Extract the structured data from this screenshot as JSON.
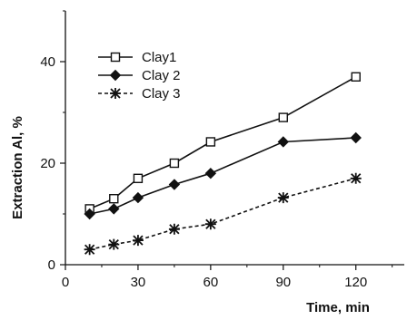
{
  "chart_data": {
    "type": "line",
    "title": "",
    "xlabel": "Time, min",
    "ylabel": "Extraction Al, %",
    "xlim": [
      0,
      140
    ],
    "ylim": [
      0,
      50
    ],
    "xticks": [
      0,
      30,
      60,
      90,
      120
    ],
    "yticks": [
      0,
      20,
      40
    ],
    "grid": false,
    "legend_position": "top-left",
    "x": [
      10,
      20,
      30,
      45,
      60,
      90,
      120
    ],
    "series": [
      {
        "name": "Clay1",
        "values": [
          11,
          13,
          17,
          20,
          24.2,
          29,
          37
        ],
        "marker": "open-square",
        "line": "solid",
        "color": "#111111"
      },
      {
        "name": "Clay 2",
        "values": [
          10,
          11,
          13.2,
          15.8,
          18,
          24.2,
          25
        ],
        "marker": "filled-diamond",
        "line": "solid",
        "color": "#111111"
      },
      {
        "name": "Clay 3",
        "values": [
          3,
          4,
          4.8,
          7,
          8,
          13.2,
          17
        ],
        "marker": "star",
        "line": "dashed",
        "color": "#111111"
      }
    ]
  }
}
